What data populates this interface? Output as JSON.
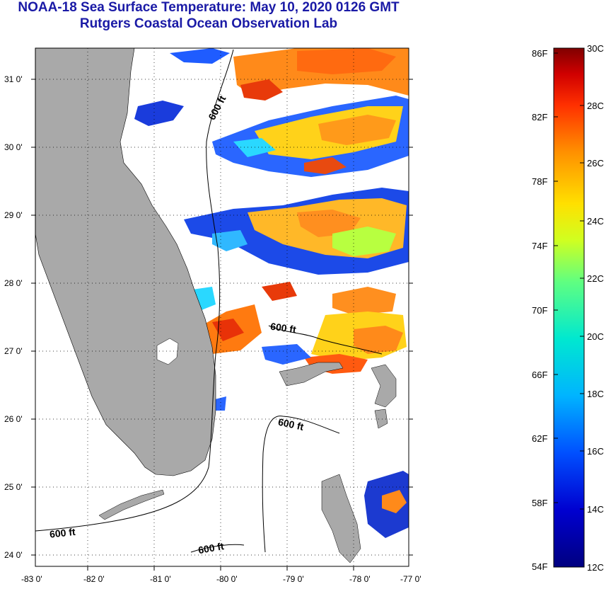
{
  "title": "NOAA-18 Sea Surface Temperature:  May 10, 2020 0126 GMT",
  "subtitle": "Rutgers Coastal Ocean Observation Lab",
  "lon_ticks": [
    "-83 0'",
    "-82 0'",
    "-81 0'",
    "-80 0'",
    "-79 0'",
    "-78 0'",
    "-77 0'"
  ],
  "lat_ticks": [
    "31 0'",
    "30 0'",
    "29 0'",
    "28 0'",
    "27 0'",
    "26 0'",
    "25 0'",
    "24 0'"
  ],
  "contour_label": "600 ft",
  "colorbar": {
    "fahrenheit_labels": [
      "86F",
      "82F",
      "78F",
      "74F",
      "70F",
      "66F",
      "62F",
      "58F",
      "54F"
    ],
    "celsius_labels": [
      "30C",
      "28C",
      "26C",
      "24C",
      "22C",
      "20C",
      "18C",
      "16C",
      "14C",
      "12C"
    ]
  },
  "colors": {
    "title": "#1a1aa6",
    "land": "#a9a9a9",
    "water_no_data": "#ffffff"
  }
}
